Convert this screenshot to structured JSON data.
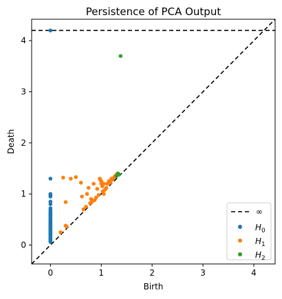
{
  "chart_data": {
    "type": "scatter",
    "title": "Persistence of PCA Output",
    "xlabel": "Birth",
    "ylabel": "Death",
    "xlim": [
      -0.37,
      4.42
    ],
    "ylim": [
      -0.37,
      4.42
    ],
    "xticks": [
      0,
      1,
      2,
      3,
      4
    ],
    "yticks": [
      0,
      1,
      2,
      3,
      4
    ],
    "grid": false,
    "legend_position": "lower-right",
    "infinity_line": {
      "label": "∞",
      "y": 4.2,
      "color": "#000000"
    },
    "diagonal": true,
    "series": [
      {
        "name": "H0",
        "label_base": "H",
        "label_sub": "0",
        "color": "#1f77b4",
        "points": [
          [
            0,
            4.2
          ],
          [
            0,
            1.3
          ],
          [
            0,
            1.0
          ],
          [
            0,
            0.98
          ],
          [
            0,
            0.95
          ],
          [
            0,
            0.85
          ],
          [
            0,
            0.8
          ],
          [
            0,
            0.72
          ],
          [
            0,
            0.68
          ],
          [
            0,
            0.65
          ],
          [
            0,
            0.62
          ],
          [
            0,
            0.6
          ],
          [
            0,
            0.58
          ],
          [
            0,
            0.55
          ],
          [
            0,
            0.52
          ],
          [
            0,
            0.5
          ],
          [
            0,
            0.48
          ],
          [
            0,
            0.46
          ],
          [
            0,
            0.44
          ],
          [
            0,
            0.42
          ],
          [
            0,
            0.4
          ],
          [
            0,
            0.38
          ],
          [
            0,
            0.36
          ],
          [
            0,
            0.34
          ],
          [
            0,
            0.32
          ],
          [
            0,
            0.3
          ],
          [
            0,
            0.28
          ],
          [
            0,
            0.26
          ],
          [
            0,
            0.24
          ],
          [
            0,
            0.22
          ],
          [
            0,
            0.2
          ],
          [
            0,
            0.18
          ],
          [
            0,
            0.16
          ],
          [
            0,
            0.14
          ],
          [
            0,
            0.12
          ],
          [
            0,
            0.1
          ],
          [
            0,
            0.08
          ],
          [
            0,
            0.06
          ]
        ]
      },
      {
        "name": "H1",
        "label_base": "H",
        "label_sub": "1",
        "color": "#ff7f0e",
        "points": [
          [
            0.25,
            1.32
          ],
          [
            0.4,
            1.3
          ],
          [
            0.5,
            1.33
          ],
          [
            0.3,
            0.84
          ],
          [
            0.2,
            0.25
          ],
          [
            0.3,
            0.38
          ],
          [
            0.32,
            0.36
          ],
          [
            0.6,
            1.22
          ],
          [
            0.62,
            0.95
          ],
          [
            0.65,
            0.7
          ],
          [
            0.7,
            0.75
          ],
          [
            0.72,
            1.0
          ],
          [
            0.75,
            1.12
          ],
          [
            0.78,
            0.82
          ],
          [
            0.8,
            0.9
          ],
          [
            0.82,
            0.85
          ],
          [
            0.85,
            1.2
          ],
          [
            0.87,
            0.88
          ],
          [
            0.9,
            0.93
          ],
          [
            0.92,
            1.1
          ],
          [
            0.95,
            0.98
          ],
          [
            0.97,
            1.3
          ],
          [
            0.98,
            1.28
          ],
          [
            1.0,
            1.25
          ],
          [
            1.0,
            1.2
          ],
          [
            1.02,
            1.15
          ],
          [
            1.03,
            1.05
          ],
          [
            1.05,
            1.2
          ],
          [
            1.05,
            1.0
          ],
          [
            1.07,
            1.08
          ],
          [
            1.1,
            1.12
          ],
          [
            1.12,
            1.2
          ],
          [
            1.15,
            1.25
          ],
          [
            1.18,
            1.22
          ],
          [
            1.2,
            1.3
          ],
          [
            1.22,
            1.28
          ],
          [
            1.25,
            1.32
          ],
          [
            1.27,
            1.35
          ],
          [
            1.3,
            1.38
          ],
          [
            1.32,
            1.4
          ]
        ]
      },
      {
        "name": "H2",
        "label_base": "H",
        "label_sub": "2",
        "color": "#2ca02c",
        "points": [
          [
            1.38,
            3.7
          ],
          [
            1.3,
            1.35
          ],
          [
            1.33,
            1.4
          ],
          [
            1.35,
            1.38
          ]
        ]
      }
    ]
  }
}
